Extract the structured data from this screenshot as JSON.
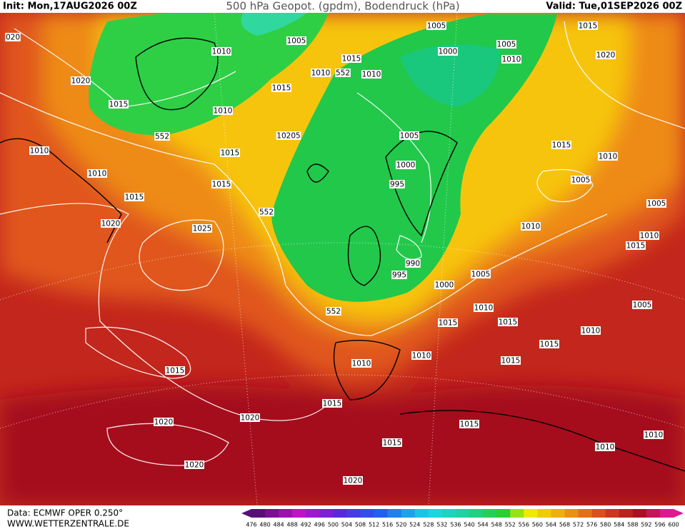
{
  "header": {
    "init": "Init: Mon,17AUG2026 00Z",
    "title": "500 hPa Geopot. (gpdm), Bodendruck (hPa)",
    "valid": "Valid: Tue,01SEP2026 00Z"
  },
  "footer": {
    "source": "Data: ECMWF OPER 0.250°",
    "website": "WWW.WETTERZENTRALE.DE"
  },
  "colorbar": {
    "labels": [
      "476",
      "480",
      "484",
      "488",
      "492",
      "496",
      "500",
      "504",
      "508",
      "512",
      "516",
      "520",
      "524",
      "528",
      "532",
      "536",
      "540",
      "544",
      "548",
      "552",
      "556",
      "560",
      "564",
      "568",
      "572",
      "576",
      "580",
      "584",
      "588",
      "592",
      "596",
      "600"
    ]
  },
  "map": {
    "isobar_labels": [
      "020",
      "1005",
      "1010",
      "1005",
      "1015",
      "1005",
      "1000",
      "1010",
      "1015",
      "1020",
      "1020",
      "1010",
      "552",
      "1010",
      "1015",
      "1015",
      "1010",
      "552",
      "10205",
      "1005",
      "1015",
      "1010",
      "1015",
      "1010",
      "1010",
      "1000",
      "1005",
      "995",
      "1015",
      "1015",
      "552",
      "1005",
      "1020",
      "1025",
      "1010",
      "1010",
      "1015",
      "990",
      "1005",
      "995",
      "1000",
      "552",
      "1010",
      "1005",
      "1015",
      "1015",
      "1010",
      "1015",
      "1010",
      "1010",
      "1015",
      "1015",
      "1015",
      "1020",
      "1015",
      "1020",
      "1015",
      "1010",
      "1010",
      "1020",
      "1020"
    ]
  }
}
